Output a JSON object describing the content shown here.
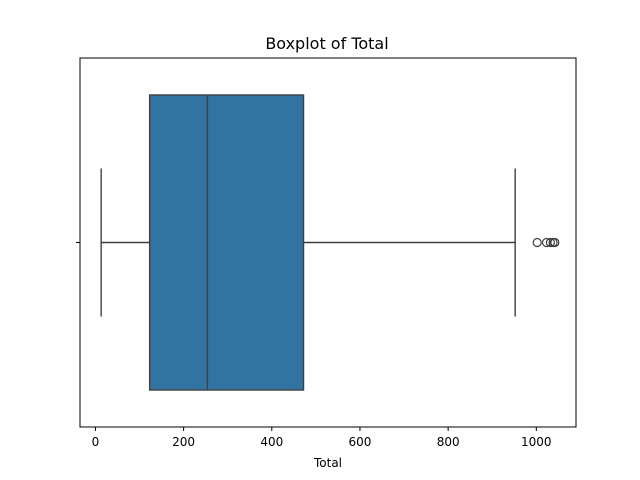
{
  "chart_data": {
    "type": "boxplot",
    "title": "Boxplot of Total",
    "xlabel": "Total",
    "ylabel": "",
    "xlim": [
      -35,
      1090
    ],
    "x_ticks": [
      0,
      200,
      400,
      600,
      800,
      1000
    ],
    "x_tick_labels": [
      "0",
      "200",
      "400",
      "600",
      "800",
      "1000"
    ],
    "grid": false,
    "legend": "none",
    "box": {
      "whisker_low": 13,
      "q1": 123,
      "median": 254,
      "q3": 472,
      "whisker_high": 952,
      "outliers": [
        1002,
        1023,
        1032,
        1038,
        1042
      ],
      "color": "#3274a1",
      "edge_color": "#3f3f3f"
    }
  }
}
